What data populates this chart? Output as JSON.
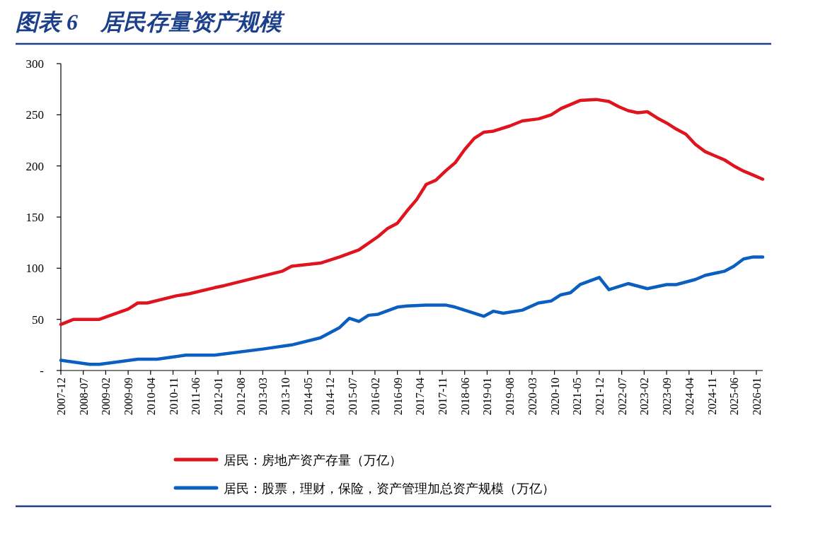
{
  "chart_data": {
    "type": "line",
    "title": "图表 6　居民存量资产规模",
    "xlim": [
      "2007-12",
      "2026-03"
    ],
    "xticks": [
      "2007-12",
      "2008-07",
      "2009-02",
      "2009-09",
      "2010-04",
      "2010-11",
      "2011-06",
      "2012-01",
      "2012-08",
      "2013-03",
      "2013-10",
      "2014-05",
      "2014-12",
      "2015-07",
      "2016-02",
      "2016-09",
      "2017-04",
      "2017-11",
      "2018-06",
      "2019-01",
      "2019-08",
      "2020-03",
      "2020-10",
      "2021-05",
      "2021-12",
      "2022-07",
      "2023-02",
      "2023-09",
      "2024-04",
      "2024-11",
      "2025-06",
      "2026-01"
    ],
    "ylim": [
      0,
      300
    ],
    "yticks": [
      {
        "value": 0,
        "label": "-"
      },
      50,
      100,
      150,
      200,
      250,
      300
    ],
    "grid": false,
    "legend": "bottom",
    "line_style": "solid",
    "marker": "none",
    "series": [
      {
        "name": "居民：房地产资产存量（万亿）",
        "color": "#e0141e",
        "x": [
          "2007-12",
          "2008-04",
          "2008-12",
          "2009-09",
          "2009-12",
          "2010-03",
          "2010-12",
          "2011-04",
          "2011-12",
          "2012-03",
          "2013-09",
          "2013-12",
          "2014-09",
          "2015-03",
          "2015-09",
          "2016-03",
          "2016-06",
          "2016-09",
          "2016-12",
          "2017-03",
          "2017-06",
          "2017-09",
          "2017-12",
          "2018-03",
          "2018-06",
          "2018-09",
          "2018-12",
          "2019-03",
          "2019-08",
          "2019-12",
          "2020-05",
          "2020-09",
          "2020-12",
          "2021-03",
          "2021-06",
          "2021-11",
          "2022-03",
          "2022-06",
          "2022-09",
          "2022-12",
          "2023-03",
          "2023-06",
          "2023-09",
          "2023-12",
          "2024-03",
          "2024-06",
          "2024-09",
          "2024-12",
          "2025-03",
          "2025-06",
          "2025-09",
          "2025-12",
          "2026-03"
        ],
        "values": [
          45,
          50,
          50,
          60,
          66,
          66,
          73,
          75,
          81,
          83,
          97,
          102,
          105,
          111,
          118,
          131,
          139,
          144,
          156,
          167,
          182,
          186,
          195,
          203,
          216,
          227,
          233,
          234,
          239,
          244,
          246,
          250,
          256,
          260,
          264,
          265,
          263,
          258,
          254,
          252,
          253,
          247,
          242,
          236,
          231,
          221,
          214,
          210,
          206,
          200,
          195,
          191,
          187
        ]
      },
      {
        "name": "居民：股票，理财，保险，资产管理加总资产规模（万亿）",
        "color": "#0a5fc0",
        "x": [
          "2007-12",
          "2008-09",
          "2008-12",
          "2009-12",
          "2010-06",
          "2011-03",
          "2011-12",
          "2013-03",
          "2013-12",
          "2014-09",
          "2015-03",
          "2015-06",
          "2015-09",
          "2015-12",
          "2016-03",
          "2016-09",
          "2016-12",
          "2017-06",
          "2017-12",
          "2018-03",
          "2018-07",
          "2018-12",
          "2019-03",
          "2019-06",
          "2019-12",
          "2020-05",
          "2020-09",
          "2020-12",
          "2021-03",
          "2021-06",
          "2021-12",
          "2022-03",
          "2022-09",
          "2023-03",
          "2023-09",
          "2023-12",
          "2024-06",
          "2024-09",
          "2024-12",
          "2025-03",
          "2025-06",
          "2025-09",
          "2025-12",
          "2026-03"
        ],
        "values": [
          10,
          6,
          6,
          11,
          11,
          15,
          15,
          21,
          25,
          32,
          42,
          51,
          48,
          54,
          55,
          62,
          63,
          64,
          64,
          62,
          58,
          53,
          58,
          56,
          59,
          66,
          68,
          74,
          76,
          84,
          91,
          79,
          85,
          80,
          84,
          84,
          89,
          93,
          95,
          97,
          102,
          109,
          111,
          111
        ]
      }
    ]
  }
}
